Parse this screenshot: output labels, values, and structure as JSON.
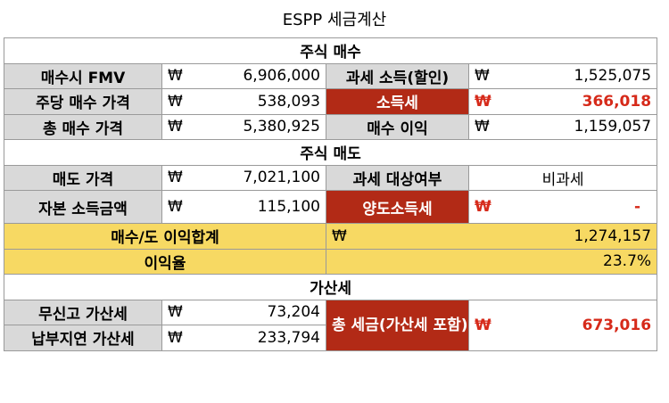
{
  "title": "ESPP 세금계산",
  "currency": "₩",
  "sections": {
    "purchase": "주식 매수",
    "sale": "주식 매도",
    "penalty": "가산세"
  },
  "purchase": {
    "fmv_label": "매수시 FMV",
    "fmv_value": "6,906,000",
    "taxable_income_label": "과세 소득(할인)",
    "taxable_income_value": "1,525,075",
    "price_per_share_label": "주당 매수 가격",
    "price_per_share_value": "538,093",
    "income_tax_label": "소득세",
    "income_tax_value": "366,018",
    "total_purchase_label": "총 매수 가격",
    "total_purchase_value": "5,380,925",
    "purchase_gain_label": "매수 이익",
    "purchase_gain_value": "1,159,057"
  },
  "sale": {
    "sale_price_label": "매도 가격",
    "sale_price_value": "7,021,100",
    "taxable_label": "과세 대상여부",
    "taxable_value": "비과세",
    "capital_gain_label": "자본 소득금액",
    "capital_gain_value": "115,100",
    "transfer_tax_label": "양도소득세",
    "transfer_tax_value": "-"
  },
  "summary": {
    "total_gain_label": "매수/도 이익합계",
    "total_gain_value": "1,274,157",
    "return_label": "이익율",
    "return_value": "23.7%"
  },
  "penalty": {
    "unreported_label": "무신고 가산세",
    "unreported_value": "73,204",
    "late_payment_label": "납부지연 가산세",
    "late_payment_value": "233,794",
    "total_tax_label": "총 세금(가산세 포함)",
    "total_tax_value": "673,016"
  },
  "colors": {
    "label_bg": "#d9d9d9",
    "highlight_red": "#b22a16",
    "red_text": "#d62a1a",
    "summary_yellow": "#f7d963"
  }
}
